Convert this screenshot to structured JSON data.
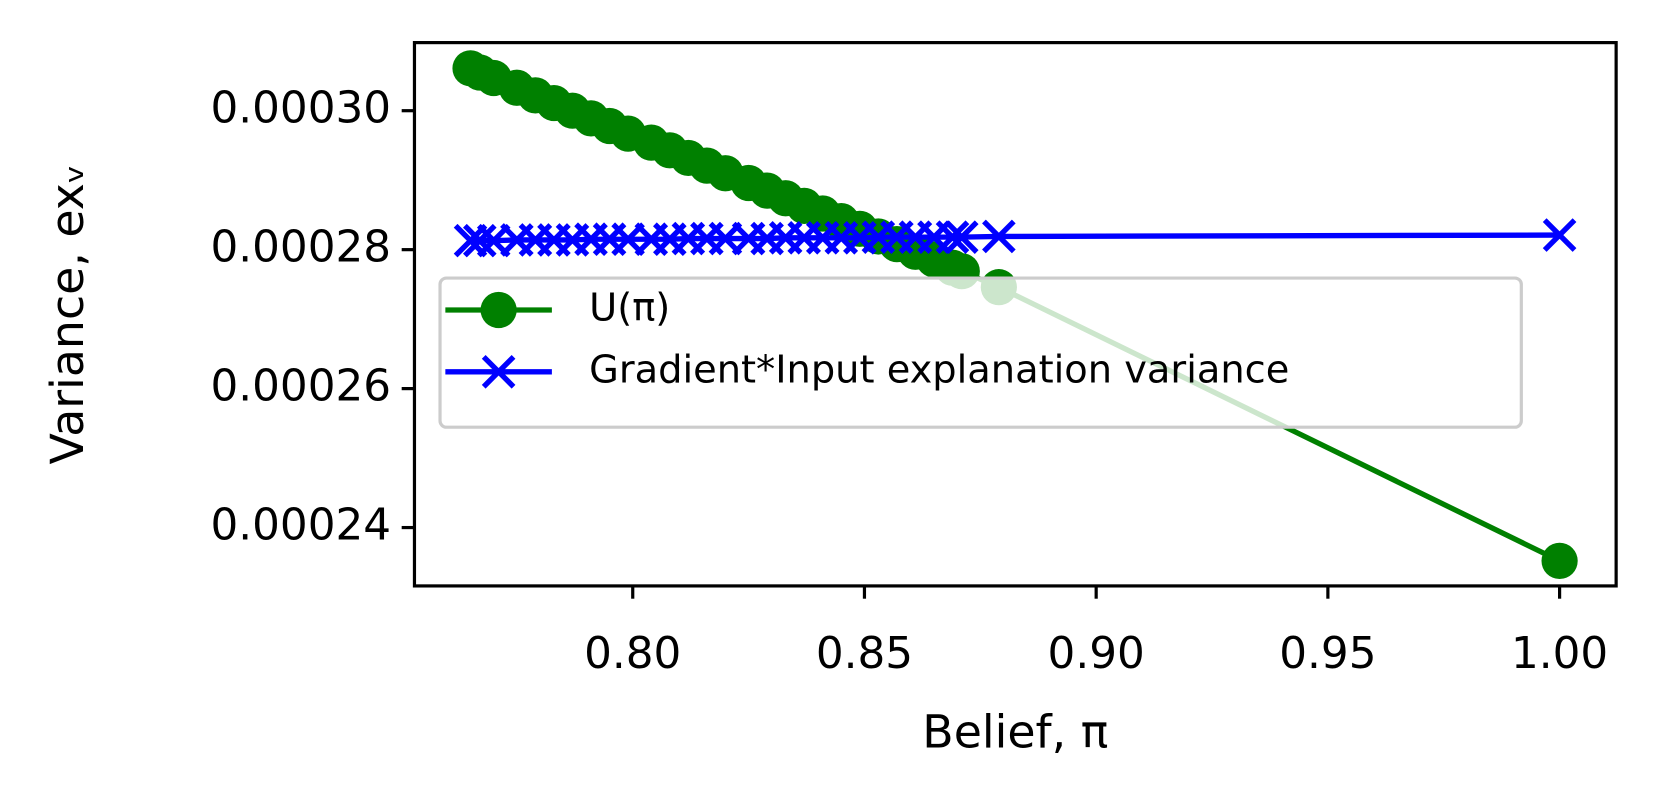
{
  "chart_data": {
    "type": "line",
    "xlabel": "Belief, π",
    "ylabel": "Variance, exᵥ",
    "x": [
      0.765,
      0.767,
      0.77,
      0.775,
      0.779,
      0.783,
      0.787,
      0.791,
      0.795,
      0.799,
      0.804,
      0.808,
      0.812,
      0.816,
      0.82,
      0.825,
      0.829,
      0.833,
      0.837,
      0.841,
      0.845,
      0.849,
      0.853,
      0.857,
      0.861,
      0.865,
      0.869,
      0.871,
      0.879,
      1.0
    ],
    "series": [
      {
        "name": "U(π)",
        "color": "#008000",
        "marker": "circle",
        "values": [
          0.0003061,
          0.0003055,
          0.0003047,
          0.0003033,
          0.0003022,
          0.0003011,
          0.0003,
          0.0002989,
          0.0002978,
          0.0002967,
          0.0002954,
          0.0002943,
          0.0002932,
          0.0002921,
          0.000291,
          0.0002896,
          0.0002885,
          0.0002874,
          0.0002863,
          0.0002852,
          0.0002841,
          0.000283,
          0.0002819,
          0.0002808,
          0.0002797,
          0.0002786,
          0.0002774,
          0.0002769,
          0.0002746,
          0.0002352
        ]
      },
      {
        "name": "Gradient*Input explanation variance",
        "color": "#0000ff",
        "marker": "x",
        "values": [
          0.0002813,
          0.0002813,
          0.0002813,
          0.0002814,
          0.0002814,
          0.0002814,
          0.0002814,
          0.0002815,
          0.0002815,
          0.0002815,
          0.0002815,
          0.0002815,
          0.0002816,
          0.0002816,
          0.0002816,
          0.0002816,
          0.0002816,
          0.0002817,
          0.0002817,
          0.0002817,
          0.0002817,
          0.0002817,
          0.0002818,
          0.0002818,
          0.0002818,
          0.0002818,
          0.0002818,
          0.0002818,
          0.0002819,
          0.0002821
        ]
      }
    ],
    "xlim": [
      0.7529,
      1.0122
    ],
    "ylim": [
      0.0002316,
      0.0003098
    ],
    "xticks": [
      {
        "value": 0.8,
        "label": "0.80"
      },
      {
        "value": 0.85,
        "label": "0.85"
      },
      {
        "value": 0.9,
        "label": "0.90"
      },
      {
        "value": 0.95,
        "label": "0.95"
      },
      {
        "value": 1.0,
        "label": "1.00"
      }
    ],
    "yticks": [
      {
        "value": 0.00024,
        "label": "0.00024"
      },
      {
        "value": 0.00026,
        "label": "0.00026"
      },
      {
        "value": 0.00028,
        "label": "0.00028"
      },
      {
        "value": 0.0003,
        "label": "0.00030"
      }
    ],
    "legend": "upper left",
    "grid": false
  }
}
